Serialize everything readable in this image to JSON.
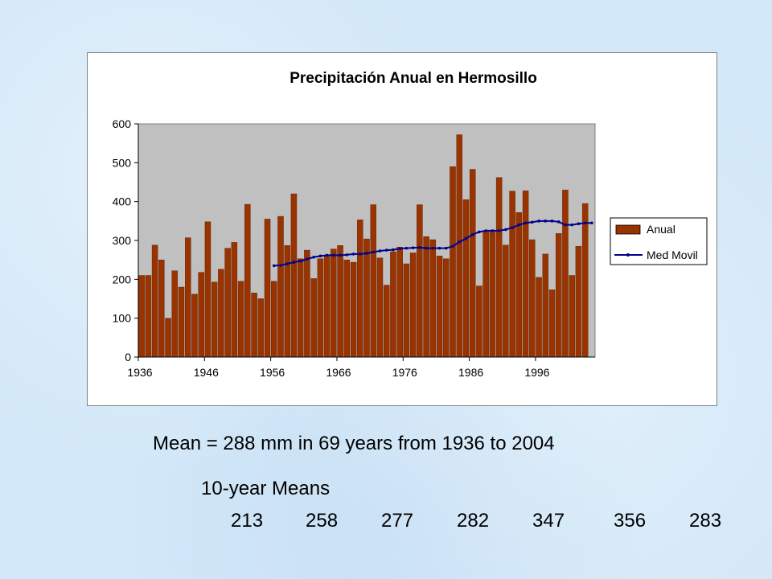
{
  "chart_data": {
    "type": "bar",
    "title": "Precipitación Anual en Hermosillo",
    "xlabel": "",
    "ylabel": "",
    "ylim": [
      0,
      600
    ],
    "yticks": [
      0,
      100,
      200,
      300,
      400,
      500,
      600
    ],
    "xtick_labels": [
      "1936",
      "1946",
      "1956",
      "1966",
      "1976",
      "1986",
      "1996"
    ],
    "grid": false,
    "plot_background": "#c0c0c0",
    "legend_position": "right",
    "x": [
      1936,
      1937,
      1938,
      1939,
      1940,
      1941,
      1942,
      1943,
      1944,
      1945,
      1946,
      1947,
      1948,
      1949,
      1950,
      1951,
      1952,
      1953,
      1954,
      1955,
      1956,
      1957,
      1958,
      1959,
      1960,
      1961,
      1962,
      1963,
      1964,
      1965,
      1966,
      1967,
      1968,
      1969,
      1970,
      1971,
      1972,
      1973,
      1974,
      1975,
      1976,
      1977,
      1978,
      1979,
      1980,
      1981,
      1982,
      1983,
      1984,
      1985,
      1986,
      1987,
      1988,
      1989,
      1990,
      1991,
      1992,
      1993,
      1994,
      1995,
      1996,
      1997,
      1998,
      1999,
      2000,
      2001,
      2002,
      2003,
      2004
    ],
    "series": [
      {
        "name": "Anual",
        "type": "bar",
        "color": "#993300",
        "values": [
          210,
          210,
          288,
          250,
          100,
          222,
          180,
          307,
          162,
          218,
          348,
          193,
          226,
          280,
          295,
          195,
          393,
          165,
          150,
          355,
          195,
          362,
          287,
          420,
          253,
          275,
          202,
          253,
          262,
          278,
          287,
          250,
          244,
          353,
          304,
          392,
          255,
          185,
          271,
          283,
          240,
          268,
          392,
          310,
          302,
          260,
          253,
          490,
          572,
          405,
          483,
          183,
          325,
          325,
          462,
          288,
          427,
          372,
          428,
          302,
          205,
          265,
          173,
          318,
          430,
          210,
          285,
          395,
          null
        ],
        "values_note": ""
      },
      {
        "name": "Med Movil",
        "type": "line",
        "color": "#00008b",
        "values": [
          null,
          null,
          null,
          null,
          null,
          null,
          null,
          null,
          null,
          null,
          null,
          null,
          null,
          null,
          null,
          null,
          null,
          null,
          null,
          null,
          235,
          236,
          240,
          244,
          247,
          252,
          257,
          260,
          262,
          262,
          262,
          263,
          265,
          265,
          267,
          270,
          273,
          275,
          276,
          279,
          280,
          281,
          282,
          280,
          280,
          280,
          280,
          285,
          296,
          305,
          315,
          322,
          325,
          325,
          325,
          328,
          333,
          340,
          345,
          347,
          350,
          350,
          350,
          348,
          340,
          340,
          343,
          345,
          345
        ]
      }
    ]
  },
  "text": {
    "mean_line": "Mean = 288 mm in 69 years from 1936 to 2004",
    "means_title": "10-year Means",
    "decade_means": [
      "213",
      "258",
      "277",
      "282",
      "347",
      "356",
      "283"
    ]
  }
}
